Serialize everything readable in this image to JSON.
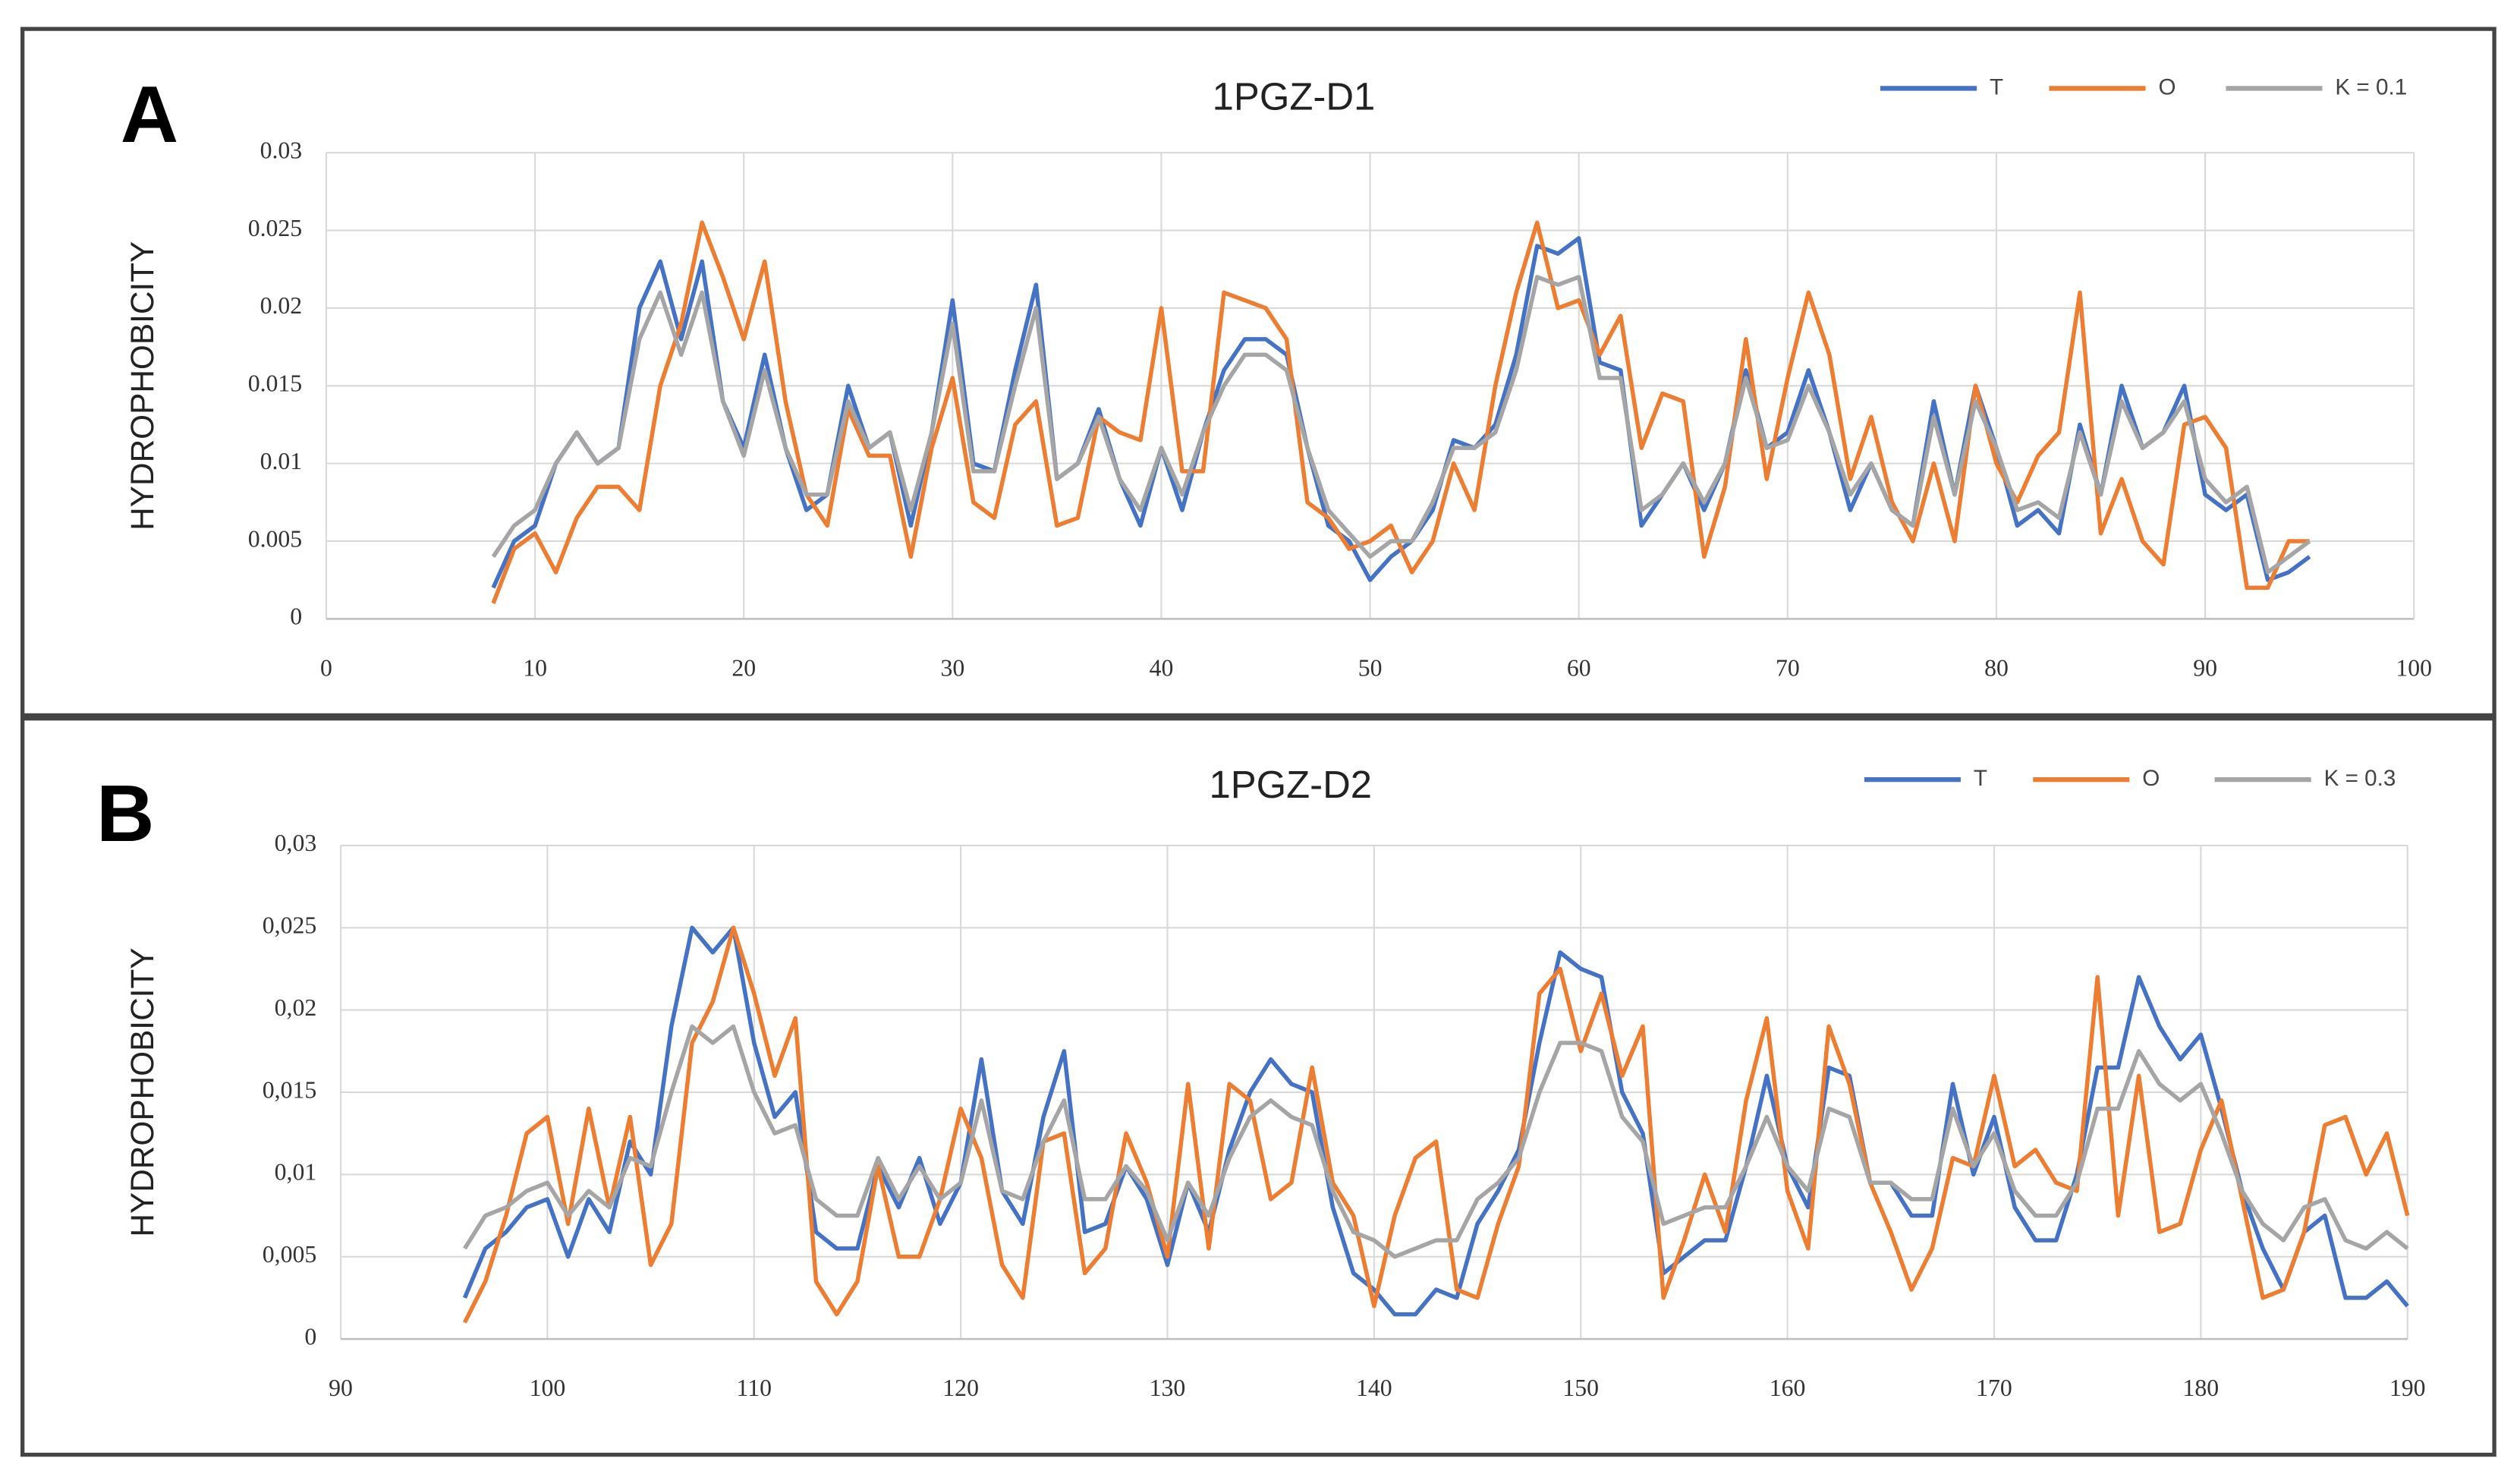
{
  "chart_data": [
    {
      "type": "line",
      "panel_label": "A",
      "title": "1PGZ-D1",
      "y_label": "HYDROPHOBICITY",
      "legend": "top-right",
      "grid": true,
      "xlim": [
        0,
        100
      ],
      "xticks": [
        0,
        10,
        20,
        30,
        40,
        50,
        60,
        70,
        80,
        90,
        100
      ],
      "ylim": [
        0,
        0.03
      ],
      "yticks": [
        0,
        0.005,
        0.01,
        0.015,
        0.02,
        0.025,
        0.03
      ],
      "x": [
        8,
        9,
        10,
        11,
        12,
        13,
        14,
        15,
        16,
        17,
        18,
        19,
        20,
        21,
        22,
        23,
        24,
        25,
        26,
        27,
        28,
        29,
        30,
        31,
        32,
        33,
        34,
        35,
        36,
        37,
        38,
        39,
        40,
        41,
        42,
        43,
        44,
        45,
        46,
        47,
        48,
        49,
        50,
        51,
        52,
        53,
        54,
        55,
        56,
        57,
        58,
        59,
        60,
        61,
        62,
        63,
        64,
        65,
        66,
        67,
        68,
        69,
        70,
        71,
        72,
        73,
        74,
        75,
        76,
        77,
        78,
        79,
        80,
        81,
        82,
        83,
        84,
        85,
        86,
        87,
        88,
        89,
        90,
        91,
        92,
        93,
        94,
        95
      ],
      "series": [
        {
          "name": "T",
          "color": "#4472c4",
          "values": [
            0.002,
            0.005,
            0.006,
            0.01,
            0.012,
            0.01,
            0.011,
            0.02,
            0.023,
            0.018,
            0.023,
            0.014,
            0.011,
            0.017,
            0.011,
            0.007,
            0.008,
            0.015,
            0.011,
            0.012,
            0.006,
            0.012,
            0.0205,
            0.01,
            0.0095,
            0.016,
            0.0215,
            0.009,
            0.01,
            0.0135,
            0.009,
            0.006,
            0.011,
            0.007,
            0.012,
            0.016,
            0.018,
            0.018,
            0.017,
            0.011,
            0.006,
            0.005,
            0.0025,
            0.004,
            0.005,
            0.007,
            0.0115,
            0.011,
            0.0125,
            0.017,
            0.024,
            0.0235,
            0.0245,
            0.0165,
            0.016,
            0.006,
            0.008,
            0.01,
            0.007,
            0.01,
            0.016,
            0.011,
            0.012,
            0.016,
            0.012,
            0.007,
            0.01,
            0.007,
            0.006,
            0.014,
            0.008,
            0.015,
            0.011,
            0.006,
            0.007,
            0.0055,
            0.0125,
            0.008,
            0.015,
            0.011,
            0.012,
            0.015,
            0.008,
            0.007,
            0.008,
            0.0025,
            0.003,
            0.004
          ]
        },
        {
          "name": "O",
          "color": "#ed7d31",
          "values": [
            0.001,
            0.0045,
            0.0055,
            0.003,
            0.0065,
            0.0085,
            0.0085,
            0.007,
            0.015,
            0.019,
            0.0255,
            0.022,
            0.018,
            0.023,
            0.014,
            0.008,
            0.006,
            0.0135,
            0.0105,
            0.0105,
            0.004,
            0.011,
            0.0155,
            0.0075,
            0.0065,
            0.0125,
            0.014,
            0.006,
            0.0065,
            0.013,
            0.012,
            0.0115,
            0.02,
            0.0095,
            0.0095,
            0.021,
            0.0205,
            0.02,
            0.018,
            0.0075,
            0.0065,
            0.0045,
            0.005,
            0.006,
            0.003,
            0.005,
            0.01,
            0.007,
            0.015,
            0.021,
            0.0255,
            0.02,
            0.0205,
            0.017,
            0.0195,
            0.011,
            0.0145,
            0.014,
            0.004,
            0.0085,
            0.018,
            0.009,
            0.0155,
            0.021,
            0.017,
            0.009,
            0.013,
            0.0075,
            0.005,
            0.01,
            0.005,
            0.015,
            0.01,
            0.0075,
            0.0105,
            0.012,
            0.021,
            0.0055,
            0.009,
            0.005,
            0.0035,
            0.0125,
            0.013,
            0.011,
            0.002,
            0.002,
            0.005,
            0.005
          ]
        },
        {
          "name": "K = 0.1",
          "color": "#a5a5a5",
          "values": [
            0.004,
            0.006,
            0.007,
            0.01,
            0.012,
            0.01,
            0.011,
            0.018,
            0.021,
            0.017,
            0.021,
            0.014,
            0.0105,
            0.016,
            0.011,
            0.008,
            0.008,
            0.014,
            0.011,
            0.012,
            0.007,
            0.012,
            0.019,
            0.0095,
            0.0095,
            0.015,
            0.02,
            0.009,
            0.01,
            0.013,
            0.009,
            0.007,
            0.011,
            0.008,
            0.012,
            0.015,
            0.017,
            0.017,
            0.016,
            0.011,
            0.007,
            0.0055,
            0.004,
            0.005,
            0.005,
            0.0075,
            0.011,
            0.011,
            0.012,
            0.016,
            0.022,
            0.0215,
            0.022,
            0.0155,
            0.0155,
            0.007,
            0.008,
            0.01,
            0.0075,
            0.01,
            0.0155,
            0.011,
            0.0115,
            0.015,
            0.012,
            0.008,
            0.01,
            0.007,
            0.006,
            0.013,
            0.008,
            0.014,
            0.011,
            0.007,
            0.0075,
            0.0065,
            0.012,
            0.008,
            0.014,
            0.011,
            0.012,
            0.014,
            0.009,
            0.0075,
            0.0085,
            0.003,
            0.004,
            0.005
          ]
        }
      ]
    },
    {
      "type": "line",
      "panel_label": "B",
      "title": "1PGZ-D2",
      "y_label": "HYDROPHOBICITY",
      "legend": "top-right",
      "grid": true,
      "xlim": [
        90,
        190
      ],
      "xticks": [
        90,
        100,
        110,
        120,
        130,
        140,
        150,
        160,
        170,
        180,
        190
      ],
      "ylim": [
        0,
        0.03
      ],
      "yticks": [
        0,
        {
          "value": 0.005,
          "label": "0,005"
        },
        {
          "value": 0.01,
          "label": "0,01"
        },
        {
          "value": 0.015,
          "label": "0,015"
        },
        {
          "value": 0.02,
          "label": "0,02"
        },
        {
          "value": 0.025,
          "label": "0,025"
        },
        {
          "value": 0.03,
          "label": "0,03"
        }
      ],
      "x": [
        96,
        97,
        98,
        99,
        100,
        101,
        102,
        103,
        104,
        105,
        106,
        107,
        108,
        109,
        110,
        111,
        112,
        113,
        114,
        115,
        116,
        117,
        118,
        119,
        120,
        121,
        122,
        123,
        124,
        125,
        126,
        127,
        128,
        129,
        130,
        131,
        132,
        133,
        134,
        135,
        136,
        137,
        138,
        139,
        140,
        141,
        142,
        143,
        144,
        145,
        146,
        147,
        148,
        149,
        150,
        151,
        152,
        153,
        154,
        155,
        156,
        157,
        158,
        159,
        160,
        161,
        162,
        163,
        164,
        165,
        166,
        167,
        168,
        169,
        170,
        171,
        172,
        173,
        174,
        175,
        176,
        177,
        178,
        179,
        180,
        181,
        182,
        183,
        184,
        185,
        186,
        187,
        188,
        189,
        190
      ],
      "series": [
        {
          "name": "T",
          "color": "#4472c4",
          "values": [
            0.0025,
            0.0055,
            0.0065,
            0.008,
            0.0085,
            0.005,
            0.0085,
            0.0065,
            0.012,
            0.01,
            0.019,
            0.025,
            0.0235,
            0.025,
            0.018,
            0.0135,
            0.015,
            0.0065,
            0.0055,
            0.0055,
            0.0105,
            0.008,
            0.011,
            0.007,
            0.0095,
            0.017,
            0.009,
            0.007,
            0.0135,
            0.0175,
            0.0065,
            0.007,
            0.0105,
            0.0085,
            0.0045,
            0.0095,
            0.0065,
            0.0115,
            0.015,
            0.017,
            0.0155,
            0.015,
            0.008,
            0.004,
            0.003,
            0.0015,
            0.0015,
            0.003,
            0.0025,
            0.007,
            0.009,
            0.0115,
            0.018,
            0.0235,
            0.0225,
            0.022,
            0.015,
            0.0125,
            0.004,
            0.005,
            0.006,
            0.006,
            0.0105,
            0.016,
            0.0105,
            0.008,
            0.0165,
            0.016,
            0.0095,
            0.0095,
            0.0075,
            0.0075,
            0.0155,
            0.01,
            0.0135,
            0.008,
            0.006,
            0.006,
            0.01,
            0.0165,
            0.0165,
            0.022,
            0.019,
            0.017,
            0.0185,
            0.014,
            0.009,
            0.0055,
            0.003,
            0.0065,
            0.0075,
            0.0025,
            0.0025,
            0.0035,
            0.002
          ]
        },
        {
          "name": "O",
          "color": "#ed7d31",
          "values": [
            0.001,
            0.0035,
            0.0075,
            0.0125,
            0.0135,
            0.007,
            0.014,
            0.008,
            0.0135,
            0.0045,
            0.007,
            0.018,
            0.0205,
            0.025,
            0.021,
            0.016,
            0.0195,
            0.0035,
            0.0015,
            0.0035,
            0.0105,
            0.005,
            0.005,
            0.0085,
            0.014,
            0.011,
            0.0045,
            0.0025,
            0.012,
            0.0125,
            0.004,
            0.0055,
            0.0125,
            0.0095,
            0.005,
            0.0155,
            0.0055,
            0.0155,
            0.0145,
            0.0085,
            0.0095,
            0.0165,
            0.0095,
            0.0075,
            0.002,
            0.0075,
            0.011,
            0.012,
            0.003,
            0.0025,
            0.007,
            0.0105,
            0.021,
            0.0225,
            0.0175,
            0.021,
            0.016,
            0.019,
            0.0025,
            0.006,
            0.01,
            0.0065,
            0.0145,
            0.0195,
            0.009,
            0.0055,
            0.019,
            0.0155,
            0.0095,
            0.0065,
            0.003,
            0.0055,
            0.011,
            0.0105,
            0.016,
            0.0105,
            0.0115,
            0.0095,
            0.009,
            0.022,
            0.0075,
            0.016,
            0.0065,
            0.007,
            0.0115,
            0.0145,
            0.0085,
            0.0025,
            0.003,
            0.0065,
            0.013,
            0.0135,
            0.01,
            0.0125,
            0.0075
          ]
        },
        {
          "name": "K = 0.3",
          "color": "#a5a5a5",
          "values": [
            0.0055,
            0.0075,
            0.008,
            0.009,
            0.0095,
            0.0075,
            0.009,
            0.008,
            0.011,
            0.0105,
            0.015,
            0.019,
            0.018,
            0.019,
            0.015,
            0.0125,
            0.013,
            0.0085,
            0.0075,
            0.0075,
            0.011,
            0.0085,
            0.0105,
            0.0085,
            0.0095,
            0.0145,
            0.009,
            0.0085,
            0.012,
            0.0145,
            0.0085,
            0.0085,
            0.0105,
            0.009,
            0.006,
            0.0095,
            0.0075,
            0.011,
            0.0135,
            0.0145,
            0.0135,
            0.013,
            0.009,
            0.0065,
            0.006,
            0.005,
            0.0055,
            0.006,
            0.006,
            0.0085,
            0.0095,
            0.011,
            0.015,
            0.018,
            0.018,
            0.0175,
            0.0135,
            0.012,
            0.007,
            0.0075,
            0.008,
            0.008,
            0.0105,
            0.0135,
            0.0105,
            0.009,
            0.014,
            0.0135,
            0.0095,
            0.0095,
            0.0085,
            0.0085,
            0.014,
            0.0105,
            0.0125,
            0.009,
            0.0075,
            0.0075,
            0.0095,
            0.014,
            0.014,
            0.0175,
            0.0155,
            0.0145,
            0.0155,
            0.0125,
            0.009,
            0.007,
            0.006,
            0.008,
            0.0085,
            0.006,
            0.0055,
            0.0065,
            0.0055
          ]
        }
      ]
    }
  ]
}
